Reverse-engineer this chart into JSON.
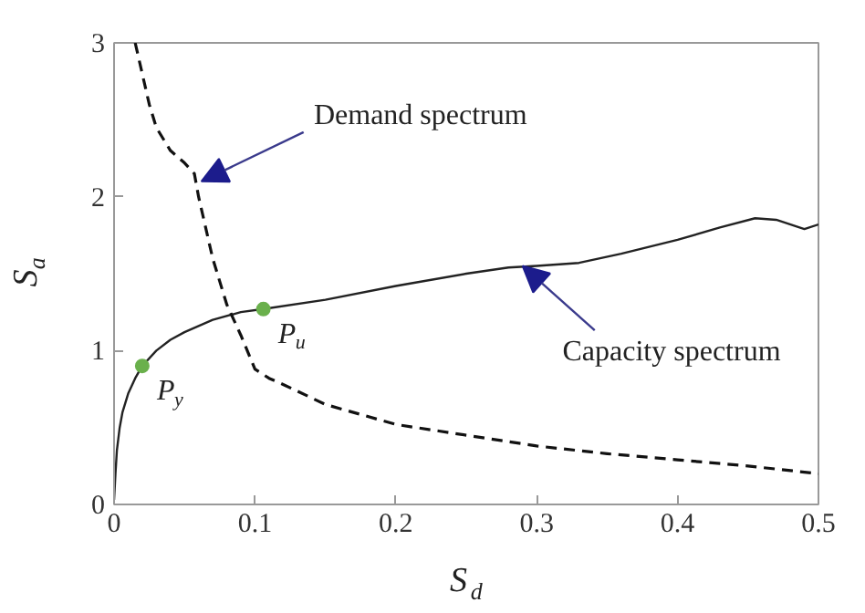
{
  "chart_data": {
    "type": "line",
    "xlabel": "S$_{d}$",
    "ylabel": "S$_{a}$",
    "xlim": [
      0,
      0.5
    ],
    "ylim": [
      0,
      3
    ],
    "xticks": [
      0,
      0.1,
      0.2,
      0.3,
      0.4,
      0.5
    ],
    "yticks": [
      0,
      1,
      2,
      3
    ],
    "grid": false,
    "series": [
      {
        "color": "#222222",
        "line_style": "solid",
        "x": [
          0.0,
          0.001,
          0.002,
          0.004,
          0.006,
          0.01,
          0.015,
          0.02,
          0.03,
          0.04,
          0.05,
          0.07,
          0.09,
          0.106,
          0.15,
          0.2,
          0.25,
          0.28,
          0.3,
          0.33,
          0.36,
          0.4,
          0.43,
          0.455,
          0.47,
          0.49,
          0.5
        ],
        "values": [
          0.03,
          0.2,
          0.35,
          0.5,
          0.6,
          0.72,
          0.82,
          0.9,
          1.0,
          1.07,
          1.12,
          1.2,
          1.25,
          1.27,
          1.33,
          1.42,
          1.5,
          1.54,
          1.55,
          1.57,
          1.63,
          1.72,
          1.8,
          1.86,
          1.85,
          1.79,
          1.82
        ]
      },
      {
        "color": "#111111",
        "line_style": "dashed",
        "x": [
          0.015,
          0.02,
          0.025,
          0.03,
          0.04,
          0.05,
          0.057,
          0.06,
          0.065,
          0.07,
          0.08,
          0.09,
          0.1,
          0.11,
          0.12,
          0.15,
          0.2,
          0.25,
          0.3,
          0.35,
          0.4,
          0.45,
          0.5
        ],
        "values": [
          3.0,
          2.8,
          2.6,
          2.45,
          2.3,
          2.22,
          2.15,
          2.0,
          1.8,
          1.6,
          1.3,
          1.1,
          0.88,
          0.82,
          0.78,
          0.65,
          0.52,
          0.45,
          0.38,
          0.33,
          0.29,
          0.25,
          0.2
        ]
      },
      {
        "type": "scatter",
        "color": "#6ab04c",
        "marker": "circle",
        "x": [
          0.02,
          0.106
        ],
        "values": [
          0.9,
          1.27
        ]
      }
    ],
    "annotations": [
      {
        "text": "P$_{y}$",
        "x": 0.02,
        "y": 0.9
      },
      {
        "text": "P$_{u}$",
        "x": 0.106,
        "y": 1.27
      },
      {
        "text": "Demand spectrum",
        "x": 0.062,
        "y": 2.1
      },
      {
        "text": "Capacity spectrum",
        "x": 0.29,
        "y": 1.55
      }
    ]
  }
}
